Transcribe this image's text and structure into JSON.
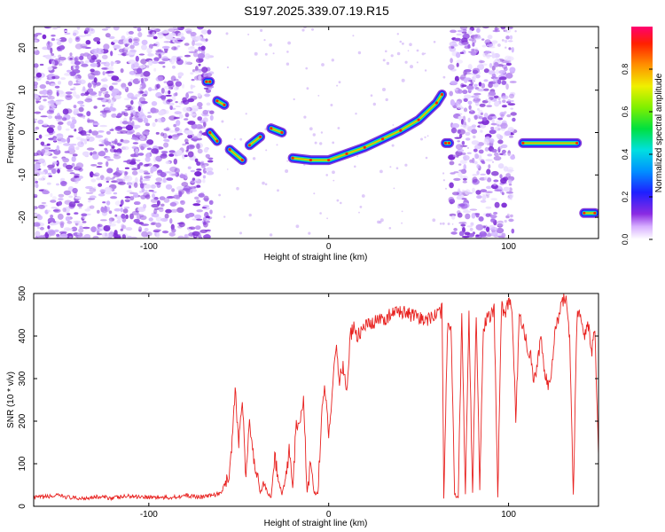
{
  "title": "S197.2025.339.07.19.R15",
  "colors": {
    "spectrogram_low": "#7c2bd4",
    "spectrogram_high": "#ff0033",
    "snr_line": "#e8211f",
    "axis": "#000000"
  },
  "chart_data": [
    {
      "type": "heatmap",
      "title": "S197.2025.339.07.19.R15",
      "xlabel": "Height of straight line (km)",
      "ylabel": "Frequency (Hz)",
      "xlim": [
        -164,
        150
      ],
      "ylim": [
        -25,
        25
      ],
      "xticks": [
        -100,
        0,
        100
      ],
      "yticks": [
        20,
        10,
        0,
        -10,
        -20
      ],
      "colorbar": {
        "label": "Normalized spectral amplitude",
        "range": [
          0,
          1
        ],
        "ticks": [
          "0.0",
          "0.2",
          "0.4",
          "0.6",
          "0.8"
        ],
        "tick_values": [
          0,
          0.2,
          0.4,
          0.6,
          0.8
        ]
      },
      "noise_regions_km": [
        [
          -164,
          -65
        ],
        [
          68,
          103
        ]
      ],
      "traces": [
        {
          "name": "meteor-trace-main",
          "points": [
            [
              -20,
              -6
            ],
            [
              -10,
              -6.5
            ],
            [
              0,
              -6.5
            ],
            [
              10,
              -5
            ],
            [
              20,
              -3.5
            ],
            [
              30,
              -1.5
            ],
            [
              40,
              0.5
            ],
            [
              50,
              3
            ],
            [
              60,
              7
            ],
            [
              63,
              9
            ]
          ]
        },
        {
          "name": "trace-early-1",
          "points": [
            [
              -68,
              12
            ],
            [
              -66,
              12
            ]
          ]
        },
        {
          "name": "trace-early-2",
          "points": [
            [
              -62,
              7.5
            ],
            [
              -58,
              6.5
            ]
          ]
        },
        {
          "name": "trace-early-3",
          "points": [
            [
              -66,
              0
            ],
            [
              -62,
              -2
            ]
          ]
        },
        {
          "name": "trace-early-4",
          "points": [
            [
              -55,
              -4
            ],
            [
              -48,
              -6.5
            ]
          ]
        },
        {
          "name": "trace-early-5",
          "points": [
            [
              -44,
              -3
            ],
            [
              -38,
              -1
            ]
          ]
        },
        {
          "name": "trace-early-6",
          "points": [
            [
              -32,
              1
            ],
            [
              -26,
              0
            ]
          ]
        },
        {
          "name": "trace-late-1",
          "points": [
            [
              65,
              -2.5
            ],
            [
              67,
              -2.5
            ]
          ]
        },
        {
          "name": "trace-late-2",
          "points": [
            [
              108,
              -2.5
            ],
            [
              138,
              -2.5
            ]
          ]
        },
        {
          "name": "trace-late-3",
          "points": [
            [
              142,
              -19
            ],
            [
              148,
              -19
            ]
          ]
        }
      ]
    },
    {
      "type": "line",
      "title": "",
      "xlabel": "Height of straight line (km)",
      "ylabel": "SNR (10 * v/v)",
      "xlim": [
        -164,
        150
      ],
      "ylim": [
        0,
        500
      ],
      "xticks": [
        -100,
        0,
        100
      ],
      "yticks": [
        0,
        100,
        200,
        300,
        400,
        500
      ],
      "series": [
        {
          "name": "SNR",
          "x": [
            -164,
            -150,
            -140,
            -130,
            -120,
            -110,
            -100,
            -90,
            -80,
            -70,
            -60,
            -55,
            -52,
            -50,
            -48,
            -46,
            -44,
            -42,
            -40,
            -38,
            -36,
            -34,
            -32,
            -30,
            -28,
            -26,
            -24,
            -22,
            -20,
            -18,
            -16,
            -14,
            -12,
            -10,
            -8,
            -6,
            -4,
            -2,
            0,
            2,
            4,
            6,
            8,
            10,
            12,
            14,
            16,
            18,
            20,
            25,
            30,
            35,
            40,
            45,
            50,
            55,
            60,
            63,
            64,
            66,
            68,
            70,
            72,
            74,
            76,
            78,
            80,
            82,
            84,
            86,
            88,
            90,
            92,
            94,
            96,
            98,
            100,
            102,
            104,
            106,
            108,
            110,
            112,
            114,
            116,
            118,
            120,
            122,
            124,
            126,
            128,
            130,
            132,
            134,
            136,
            138,
            140,
            142,
            144,
            146,
            148,
            150
          ],
          "y": [
            20,
            25,
            18,
            22,
            20,
            24,
            22,
            20,
            25,
            22,
            30,
            80,
            270,
            150,
            260,
            60,
            200,
            120,
            80,
            30,
            60,
            30,
            20,
            120,
            60,
            30,
            60,
            130,
            40,
            200,
            180,
            260,
            30,
            100,
            30,
            30,
            210,
            280,
            170,
            270,
            380,
            300,
            330,
            270,
            400,
            420,
            400,
            410,
            420,
            430,
            440,
            450,
            460,
            450,
            440,
            440,
            450,
            460,
            20,
            420,
            430,
            30,
            20,
            440,
            30,
            450,
            30,
            460,
            40,
            420,
            440,
            450,
            460,
            20,
            470,
            450,
            480,
            460,
            200,
            440,
            430,
            380,
            360,
            300,
            330,
            400,
            310,
            290,
            320,
            420,
            450,
            480,
            490,
            390,
            30,
            440,
            460,
            400,
            440,
            360,
            410,
            120
          ]
        }
      ]
    }
  ]
}
